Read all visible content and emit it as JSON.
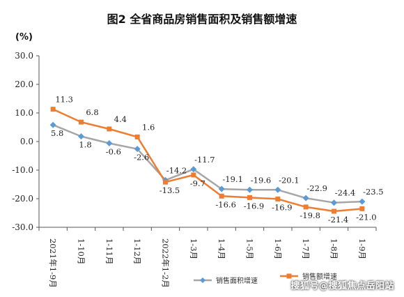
{
  "chart_data": {
    "type": "line",
    "title": "图2 全省商品房销售面积及销售额增速",
    "ylabel": "(%)",
    "ylim": [
      -30,
      30
    ],
    "yticks": [
      "30.0",
      "20.0",
      "10.0",
      "0.0",
      "-10.0",
      "-20.0",
      "-30.0"
    ],
    "categories": [
      "2021年1-9月",
      "1-10月",
      "1-11月",
      "1-12月",
      "2022年1-2月",
      "1-3月",
      "1-4月",
      "1-5月",
      "1-6月",
      "1-7月",
      "1-8月",
      "1-9月"
    ],
    "series": [
      {
        "name": "销售面积增速",
        "color": "#5b9bd5",
        "line_color": "#a6a6a6",
        "marker": "diamond",
        "values": [
          5.8,
          1.8,
          -0.6,
          -2.6,
          -13.5,
          -9.7,
          -16.6,
          -16.9,
          -16.9,
          -19.8,
          -21.4,
          -21.0
        ],
        "labels": [
          "5.8",
          "1.8",
          "-0.6",
          "-2.6",
          "-13.5",
          "-9.7",
          "-16.6",
          "-16.9",
          "-16.9",
          "-19.8",
          "-21.4",
          "-21.0"
        ]
      },
      {
        "name": "销售额增速",
        "color": "#ed7d31",
        "line_color": "#ed7d31",
        "marker": "square",
        "values": [
          11.3,
          6.8,
          4.4,
          1.6,
          -14.2,
          -11.7,
          -19.1,
          -19.6,
          -20.1,
          -22.9,
          -24.4,
          -23.5
        ],
        "labels": [
          "11.3",
          "6.8",
          "4.4",
          "1.6",
          "-14.2",
          "-11.7",
          "-19.1",
          "-19.6",
          "-20.1",
          "-22.9",
          "-24.4",
          "-23.5"
        ]
      }
    ],
    "legend_position": "bottom-right",
    "grid": false
  },
  "watermark": "搜狐号@搜狐焦点岳阳站"
}
